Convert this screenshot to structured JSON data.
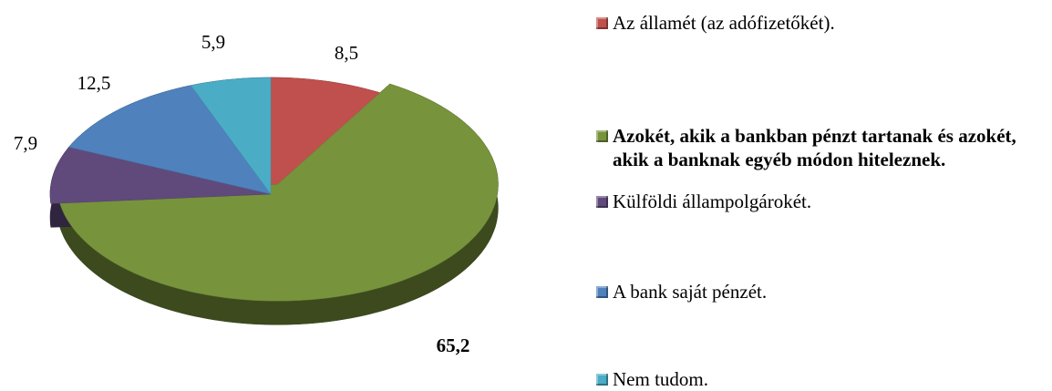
{
  "chart_data": {
    "type": "pie",
    "categories": [
      "Az államét (az adófizetőkét).",
      "Azokét, akik a bankban pénzt tartanak és azokét, akik a banknak egyéb módon hiteleznek.",
      "Külföldi állampolgárokét.",
      "A bank saját pénzét.",
      "Nem tudom."
    ],
    "values": [
      8.5,
      65.2,
      7.9,
      12.5,
      5.9
    ],
    "value_labels": [
      "8,5",
      "65,2",
      "7,9",
      "12,5",
      "5,9"
    ],
    "colors": [
      "#c0504d",
      "#77933c",
      "#604a7b",
      "#4f81bd",
      "#4bacc6"
    ]
  }
}
